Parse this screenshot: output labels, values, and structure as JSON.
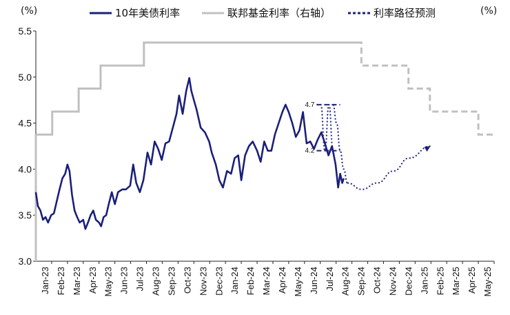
{
  "chart_data": {
    "type": "line",
    "left_axis_unit": "(%)",
    "right_axis_unit": "(%)",
    "ylim": [
      3.0,
      5.5
    ],
    "yticks": [
      "3.0",
      "3.5",
      "4.0",
      "4.5",
      "5.0",
      "5.5"
    ],
    "xtick_labels": [
      "Jan-23",
      "Feb-23",
      "Mar-23",
      "Apr-23",
      "May-23",
      "Jun-23",
      "Jul-23",
      "Aug-23",
      "Sep-23",
      "Oct-23",
      "Nov-23",
      "Dec-23",
      "Jan-24",
      "Feb-24",
      "Mar-24",
      "Apr-24",
      "May-24",
      "Jun-24",
      "Jul-24",
      "Aug-24",
      "Sep-24",
      "Oct-24",
      "Nov-24",
      "Dec-24",
      "Jan-25",
      "Feb-25",
      "Mar-25",
      "Apr-25",
      "May-25"
    ],
    "colors": {
      "ust10y": "#1a1f7a",
      "fed": "#c0c0c0",
      "path": "#1a1f7a"
    },
    "legend": [
      {
        "label": "10年美债利率",
        "style": "solid-navy"
      },
      {
        "label": "联邦基金利率（右轴）",
        "style": "solid-gray"
      },
      {
        "label": "利率路径预测",
        "style": "dashed-navy"
      }
    ],
    "series": [
      {
        "name": "10年美债利率",
        "points": [
          [
            "2023-01-01",
            3.75
          ],
          [
            "2023-01-05",
            3.6
          ],
          [
            "2023-01-10",
            3.55
          ],
          [
            "2023-01-15",
            3.45
          ],
          [
            "2023-01-20",
            3.48
          ],
          [
            "2023-01-25",
            3.42
          ],
          [
            "2023-01-31",
            3.5
          ],
          [
            "2023-02-05",
            3.52
          ],
          [
            "2023-02-10",
            3.65
          ],
          [
            "2023-02-15",
            3.78
          ],
          [
            "2023-02-20",
            3.9
          ],
          [
            "2023-02-25",
            3.95
          ],
          [
            "2023-03-01",
            4.05
          ],
          [
            "2023-03-05",
            3.98
          ],
          [
            "2023-03-10",
            3.72
          ],
          [
            "2023-03-15",
            3.55
          ],
          [
            "2023-03-20",
            3.48
          ],
          [
            "2023-03-25",
            3.42
          ],
          [
            "2023-04-01",
            3.45
          ],
          [
            "2023-04-05",
            3.35
          ],
          [
            "2023-04-10",
            3.42
          ],
          [
            "2023-04-15",
            3.5
          ],
          [
            "2023-04-20",
            3.55
          ],
          [
            "2023-04-25",
            3.45
          ],
          [
            "2023-05-01",
            3.42
          ],
          [
            "2023-05-05",
            3.38
          ],
          [
            "2023-05-10",
            3.48
          ],
          [
            "2023-05-15",
            3.5
          ],
          [
            "2023-05-20",
            3.62
          ],
          [
            "2023-05-26",
            3.75
          ],
          [
            "2023-06-01",
            3.62
          ],
          [
            "2023-06-07",
            3.75
          ],
          [
            "2023-06-15",
            3.78
          ],
          [
            "2023-06-22",
            3.78
          ],
          [
            "2023-06-30",
            3.82
          ],
          [
            "2023-07-06",
            4.05
          ],
          [
            "2023-07-12",
            3.85
          ],
          [
            "2023-07-19",
            3.75
          ],
          [
            "2023-07-26",
            3.88
          ],
          [
            "2023-08-03",
            4.18
          ],
          [
            "2023-08-10",
            4.05
          ],
          [
            "2023-08-17",
            4.3
          ],
          [
            "2023-08-24",
            4.22
          ],
          [
            "2023-08-31",
            4.1
          ],
          [
            "2023-09-07",
            4.28
          ],
          [
            "2023-09-14",
            4.3
          ],
          [
            "2023-09-21",
            4.45
          ],
          [
            "2023-09-28",
            4.6
          ],
          [
            "2023-10-03",
            4.8
          ],
          [
            "2023-10-10",
            4.6
          ],
          [
            "2023-10-17",
            4.85
          ],
          [
            "2023-10-23",
            4.99
          ],
          [
            "2023-10-27",
            4.85
          ],
          [
            "2023-11-01",
            4.75
          ],
          [
            "2023-11-06",
            4.65
          ],
          [
            "2023-11-14",
            4.45
          ],
          [
            "2023-11-22",
            4.4
          ],
          [
            "2023-11-30",
            4.3
          ],
          [
            "2023-12-05",
            4.18
          ],
          [
            "2023-12-13",
            4.05
          ],
          [
            "2023-12-20",
            3.88
          ],
          [
            "2023-12-27",
            3.8
          ],
          [
            "2024-01-04",
            3.98
          ],
          [
            "2024-01-12",
            3.95
          ],
          [
            "2024-01-19",
            4.12
          ],
          [
            "2024-01-26",
            4.15
          ],
          [
            "2024-02-01",
            3.88
          ],
          [
            "2024-02-08",
            4.15
          ],
          [
            "2024-02-15",
            4.25
          ],
          [
            "2024-02-22",
            4.3
          ],
          [
            "2024-03-01",
            4.2
          ],
          [
            "2024-03-08",
            4.08
          ],
          [
            "2024-03-15",
            4.3
          ],
          [
            "2024-03-22",
            4.2
          ],
          [
            "2024-03-29",
            4.2
          ],
          [
            "2024-04-05",
            4.38
          ],
          [
            "2024-04-12",
            4.5
          ],
          [
            "2024-04-19",
            4.62
          ],
          [
            "2024-04-25",
            4.7
          ],
          [
            "2024-05-01",
            4.62
          ],
          [
            "2024-05-08",
            4.5
          ],
          [
            "2024-05-15",
            4.35
          ],
          [
            "2024-05-22",
            4.42
          ],
          [
            "2024-05-29",
            4.62
          ],
          [
            "2024-06-05",
            4.28
          ],
          [
            "2024-06-12",
            4.3
          ],
          [
            "2024-06-19",
            4.22
          ],
          [
            "2024-06-26",
            4.32
          ],
          [
            "2024-07-03",
            4.4
          ],
          [
            "2024-07-10",
            4.28
          ],
          [
            "2024-07-17",
            4.15
          ],
          [
            "2024-07-24",
            4.25
          ],
          [
            "2024-07-31",
            4.05
          ],
          [
            "2024-08-05",
            3.8
          ],
          [
            "2024-08-09",
            3.95
          ],
          [
            "2024-08-13",
            3.85
          ],
          [
            "2024-08-16",
            3.9
          ]
        ]
      },
      {
        "name": "联邦基金利率（右轴）",
        "steps": [
          [
            "2023-01-01",
            4.375
          ],
          [
            "2023-02-02",
            4.625
          ],
          [
            "2023-03-23",
            4.875
          ],
          [
            "2023-05-04",
            5.125
          ],
          [
            "2023-07-27",
            5.375
          ],
          [
            "2024-09-10",
            5.375
          ]
        ],
        "projected_steps": [
          [
            "2024-09-10",
            5.375
          ],
          [
            "2024-09-19",
            5.125
          ],
          [
            "2024-12-19",
            4.875
          ],
          [
            "2025-01-30",
            4.625
          ],
          [
            "2025-05-01",
            4.375
          ],
          [
            "2025-05-31",
            4.375
          ]
        ]
      },
      {
        "name": "利率路径预测",
        "paths": [
          [
            [
              "2024-06-24",
              4.7
            ],
            [
              "2024-07-02",
              4.7
            ],
            [
              "2024-07-10",
              4.2
            ],
            [
              "2024-07-18",
              4.7
            ],
            [
              "2024-07-26",
              4.2
            ]
          ],
          [
            [
              "2024-07-26",
              4.7
            ],
            [
              "2024-08-02",
              4.5
            ],
            [
              "2024-08-09",
              4.2
            ],
            [
              "2024-08-16",
              4.0
            ],
            [
              "2024-08-23",
              3.85
            ]
          ],
          [
            [
              "2024-08-23",
              3.85
            ],
            [
              "2024-09-20",
              3.78
            ],
            [
              "2024-10-20",
              3.85
            ],
            [
              "2024-11-20",
              3.98
            ],
            [
              "2024-12-20",
              4.12
            ],
            [
              "2025-01-31",
              4.25
            ]
          ]
        ],
        "reference_levels": [
          {
            "label": "4.7",
            "value": 4.7,
            "from": "2024-06-24",
            "to": "2024-08-09"
          },
          {
            "label": "4.2",
            "value": 4.2,
            "from": "2024-06-24",
            "to": "2024-08-09"
          }
        ]
      }
    ]
  }
}
